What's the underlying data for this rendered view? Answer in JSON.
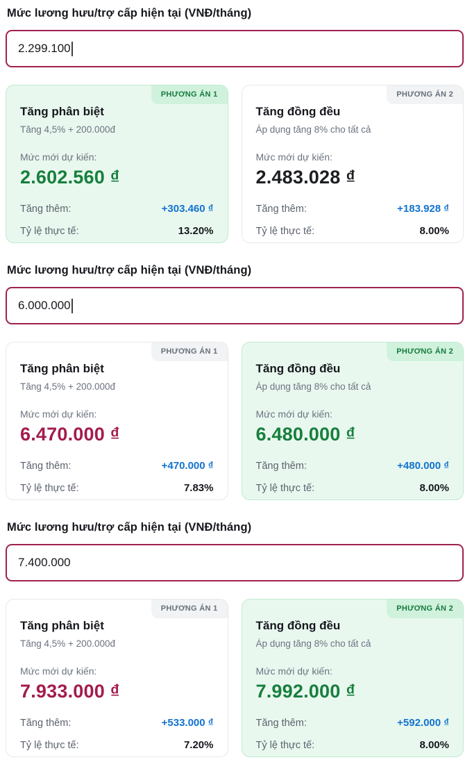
{
  "colors": {
    "input_border": "#9e2150",
    "highlight_card_bg": "#e9f8ef",
    "highlight_badge_bg": "#d0f2dd",
    "highlight_badge_text": "#177a3e",
    "plain_badge_bg": "#f1f3f5",
    "plain_badge_text": "#66707c",
    "value_green": "#177f3d",
    "value_maroon": "#a31c4e",
    "value_dark": "#1c1e22",
    "value_blue": "#1373d0"
  },
  "labels": {
    "new_amount": "Mức mới dự kiến:",
    "increase": "Tăng thêm:",
    "rate": "Tỷ lệ thực tế:"
  },
  "sections": [
    {
      "label": "Mức lương hưu/trợ cấp hiện tại (VNĐ/tháng)",
      "input_value": "2.299.100",
      "options": [
        {
          "badge": "PHƯƠNG ÁN 1",
          "title": "Tăng phân biệt",
          "subtitle": "Tăng 4,5% + 200.000đ",
          "new_amount": "2.602.560 ₫",
          "increase": "+303.460 ₫",
          "rate": "13.20%"
        },
        {
          "badge": "PHƯƠNG ÁN 2",
          "title": "Tăng đồng đều",
          "subtitle": "Áp dụng tăng 8% cho tất cả",
          "new_amount": "2.483.028 ₫",
          "increase": "+183.928 ₫",
          "rate": "8.00%"
        }
      ]
    },
    {
      "label": "Mức lương hưu/trợ cấp hiện tại (VNĐ/tháng)",
      "input_value": "6.000.000",
      "options": [
        {
          "badge": "PHƯƠNG ÁN 1",
          "title": "Tăng phân biệt",
          "subtitle": "Tăng 4,5% + 200.000đ",
          "new_amount": "6.470.000 ₫",
          "increase": "+470.000 ₫",
          "rate": "7.83%"
        },
        {
          "badge": "PHƯƠNG ÁN 2",
          "title": "Tăng đồng đều",
          "subtitle": "Áp dụng tăng 8% cho tất cả",
          "new_amount": "6.480.000 ₫",
          "increase": "+480.000 ₫",
          "rate": "8.00%"
        }
      ]
    },
    {
      "label": "Mức lương hưu/trợ cấp hiện tại (VNĐ/tháng)",
      "input_value": "7.400.000",
      "options": [
        {
          "badge": "PHƯƠNG ÁN 1",
          "title": "Tăng phân biệt",
          "subtitle": "Tăng 4,5% + 200.000đ",
          "new_amount": "7.933.000 ₫",
          "increase": "+533.000 ₫",
          "rate": "7.20%"
        },
        {
          "badge": "PHƯƠNG ÁN 2",
          "title": "Tăng đồng đều",
          "subtitle": "Áp dụng tăng 8% cho tất cả",
          "new_amount": "7.992.000 ₫",
          "increase": "+592.000 ₫",
          "rate": "8.00%"
        }
      ]
    }
  ]
}
